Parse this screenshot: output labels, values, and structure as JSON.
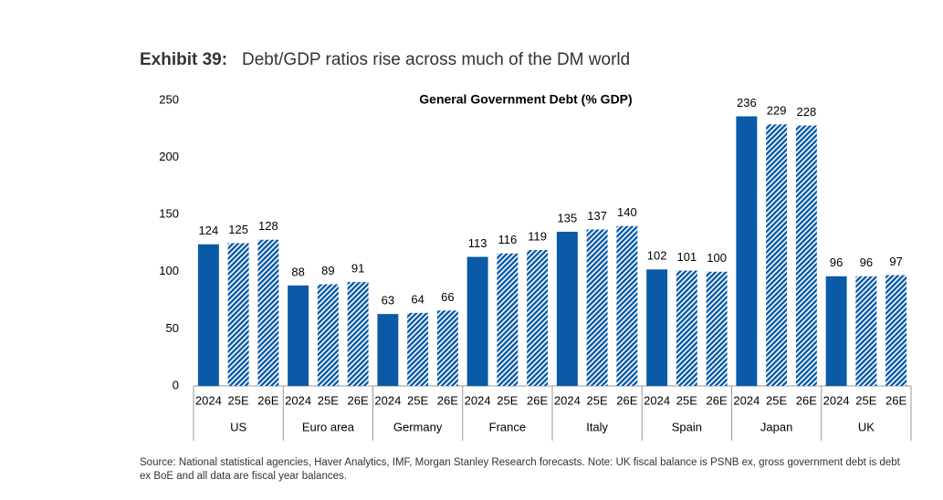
{
  "chart_data": {
    "type": "bar",
    "exhibit": "Exhibit 39:",
    "title": "Debt/GDP ratios rise across much of the DM world",
    "subtitle": "General Government Debt (% GDP)",
    "categories": [
      "US",
      "Euro area",
      "Germany",
      "France",
      "Italy",
      "Spain",
      "Japan",
      "UK"
    ],
    "series": [
      {
        "name": "2024",
        "color": "#0a5aa8",
        "hatch": false,
        "values": [
          124,
          88,
          63,
          113,
          135,
          102,
          236,
          96
        ]
      },
      {
        "name": "25E",
        "color": "#0a5aa8",
        "hatch": true,
        "values": [
          125,
          89,
          64,
          116,
          137,
          101,
          229,
          96
        ]
      },
      {
        "name": "26E",
        "color": "#0a5aa8",
        "hatch": true,
        "values": [
          128,
          91,
          66,
          119,
          140,
          100,
          228,
          97
        ]
      }
    ],
    "ylim": [
      0,
      250
    ],
    "yticks": [
      0,
      50,
      100,
      150,
      200,
      250
    ],
    "grid": false,
    "source": "Source: National statistical agencies, Haver Analytics, IMF, Morgan Stanley Research forecasts. Note: UK fiscal balance is PSNB ex, gross government debt is debt ex BoE and all data are fiscal year balances."
  }
}
